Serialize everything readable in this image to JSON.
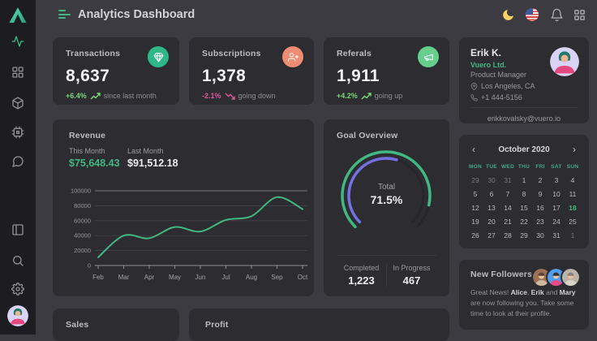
{
  "app": {
    "title": "Analytics Dashboard"
  },
  "header": {
    "icons": [
      "moon-icon",
      "us-flag-icon",
      "bell-icon",
      "apps-grid-icon"
    ]
  },
  "sidebar": {
    "items": [
      "dashboard",
      "apps",
      "components",
      "plugins",
      "messages",
      "layouts",
      "search",
      "settings"
    ]
  },
  "stats": [
    {
      "label": "Transactions",
      "value": "8,637",
      "delta": "+6.4%",
      "direction": "up",
      "note": "since last month",
      "icon": "gem-icon",
      "icon_bg": "#2eb787"
    },
    {
      "label": "Subscriptions",
      "value": "1,378",
      "delta": "-2.1%",
      "direction": "down",
      "note": "going down",
      "icon": "user-plus-icon",
      "icon_bg": "#ef8d72"
    },
    {
      "label": "Referals",
      "value": "1,911",
      "delta": "+4.2%",
      "direction": "up",
      "note": "going up",
      "icon": "megaphone-icon",
      "icon_bg": "#66cf8e"
    }
  ],
  "profile": {
    "name": "Erik K.",
    "company": "Vuero Ltd.",
    "role": "Product Manager",
    "location": "Los Angeles, CA",
    "phone": "+1 444-5156",
    "email": "erikkovalsky@vuero.io"
  },
  "revenue": {
    "title": "Revenue",
    "this_month_label": "This Month",
    "this_month_value": "$75,648.43",
    "last_month_label": "Last Month",
    "last_month_value": "$91,512.18"
  },
  "goal": {
    "title": "Goal Overview"
  },
  "chart_data": [
    {
      "type": "line",
      "title": "Revenue",
      "x": [
        "Feb",
        "Mar",
        "Apr",
        "May",
        "Jun",
        "Jul",
        "Aug",
        "Sep",
        "Oct"
      ],
      "values": [
        11000,
        40000,
        36500,
        51500,
        45500,
        61000,
        66000,
        91500,
        75500
      ],
      "ylim": [
        0,
        100000
      ],
      "yticks": [
        0,
        20000,
        40000,
        60000,
        80000,
        100000
      ],
      "line_color": "#41b883",
      "grid": "horizontal",
      "legend": "none"
    },
    {
      "type": "radial-gauge",
      "title": "Goal Overview",
      "center": {
        "label": "Total",
        "value": "71.5%"
      },
      "track_pct": 75,
      "series": [
        {
          "name": "Completed",
          "value": "1,223",
          "arc_pct": 88,
          "color": "#41b883"
        },
        {
          "name": "In Progress",
          "value": "467",
          "arc_pct": 56,
          "color": "#7570e2"
        }
      ]
    }
  ],
  "calendar": {
    "month": "October 2020",
    "prev": "‹",
    "next": "›",
    "day_headers": [
      "MON",
      "TUE",
      "WED",
      "THU",
      "FRI",
      "SAT",
      "SUN"
    ],
    "days": [
      {
        "t": "29",
        "muted": true
      },
      {
        "t": "30",
        "muted": true
      },
      {
        "t": "31",
        "muted": true
      },
      {
        "t": "1"
      },
      {
        "t": "2"
      },
      {
        "t": "3"
      },
      {
        "t": "4"
      },
      {
        "t": "5"
      },
      {
        "t": "6"
      },
      {
        "t": "7"
      },
      {
        "t": "8"
      },
      {
        "t": "9"
      },
      {
        "t": "10"
      },
      {
        "t": "11"
      },
      {
        "t": "12"
      },
      {
        "t": "13"
      },
      {
        "t": "14"
      },
      {
        "t": "15"
      },
      {
        "t": "16"
      },
      {
        "t": "17"
      },
      {
        "t": "18",
        "selected": true
      },
      {
        "t": "19"
      },
      {
        "t": "20"
      },
      {
        "t": "21"
      },
      {
        "t": "22"
      },
      {
        "t": "23"
      },
      {
        "t": "24"
      },
      {
        "t": "25"
      },
      {
        "t": "26"
      },
      {
        "t": "27"
      },
      {
        "t": "28"
      },
      {
        "t": "29"
      },
      {
        "t": "30"
      },
      {
        "t": "31"
      },
      {
        "t": "1",
        "muted": true
      }
    ]
  },
  "followers": {
    "title": "New Followers",
    "segments": [
      {
        "t": "Great News! "
      },
      {
        "t": "Alice",
        "bold": true
      },
      {
        "t": ", "
      },
      {
        "t": "Erik",
        "bold": true
      },
      {
        "t": " and "
      },
      {
        "t": "Mary",
        "bold": true
      },
      {
        "t": " are now following you. Take some time to look at their profile."
      }
    ]
  },
  "bottom": {
    "sales_title": "Sales",
    "profit_title": "Profit"
  },
  "colors": {
    "primary": "#41b883",
    "accent_purple": "#7570e2",
    "positive": "#79d879",
    "negative": "#dd5a9c",
    "bg": "#3b3b41",
    "card": "#2c2c31",
    "sidebar": "#1d1d21"
  }
}
